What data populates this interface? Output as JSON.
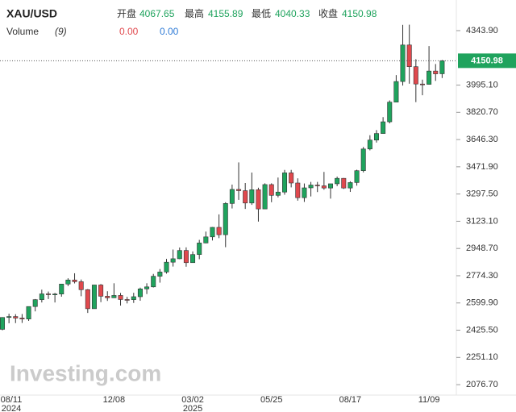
{
  "chart_data": {
    "type": "candlestick",
    "title": "XAU/USD",
    "ohlc_labels": [
      "开盘",
      "最高",
      "最低",
      "收盘"
    ],
    "volume_label": "Volume",
    "volume_period": "(9)",
    "volume_values": [
      {
        "value": 0,
        "label": "0.00"
      },
      {
        "value": 0,
        "label": "0.00"
      }
    ],
    "watermark": "Investing.com",
    "up_color": "#1fa35d",
    "down_color": "#e0484d",
    "categories": [
      "08/11",
      null,
      null,
      null,
      null,
      null,
      null,
      null,
      null,
      null,
      null,
      null,
      null,
      null,
      null,
      null,
      null,
      "12/08",
      null,
      null,
      null,
      null,
      null,
      null,
      null,
      null,
      null,
      null,
      null,
      "03/02",
      null,
      null,
      null,
      null,
      null,
      null,
      null,
      null,
      null,
      null,
      null,
      "05/25",
      null,
      null,
      null,
      null,
      null,
      null,
      null,
      null,
      null,
      null,
      null,
      "08/17",
      null,
      null,
      null,
      null,
      null,
      null,
      null,
      null,
      null,
      null,
      null,
      "11/09",
      null,
      null
    ],
    "category_years": [
      "2024",
      null,
      null,
      null,
      null,
      null,
      null,
      null,
      null,
      null,
      null,
      null,
      null,
      null,
      null,
      null,
      null,
      null,
      null,
      null,
      null,
      null,
      null,
      null,
      null,
      null,
      null,
      null,
      null,
      "2025",
      null,
      null,
      null,
      null,
      null,
      null,
      null,
      null,
      null,
      null,
      null,
      null,
      null,
      null,
      null,
      null,
      null,
      null,
      null,
      null,
      null,
      null,
      null,
      null,
      null,
      null,
      null,
      null,
      null,
      null,
      null,
      null,
      null,
      null,
      null,
      null,
      null,
      null
    ],
    "open": [
      2431,
      2507,
      2513,
      2503,
      2497,
      2577,
      2621,
      2658,
      2653,
      2657,
      2721,
      2747,
      2736,
      2685,
      2563,
      2715,
      2643,
      2633,
      2648,
      2622,
      2621,
      2640,
      2690,
      2703,
      2771,
      2798,
      2861,
      2883,
      2936,
      2858,
      2910,
      2984,
      3023,
      3084,
      3037,
      3237,
      3327,
      3319,
      3240,
      3325,
      3202,
      3358,
      3289,
      3310,
      3433,
      3368,
      3274,
      3337,
      3355,
      3350,
      3336,
      3363,
      3398,
      3336,
      3371,
      3447,
      3586,
      3643,
      3685,
      3760,
      3886,
      4018,
      4252,
      4113,
      4002,
      4000,
      4085,
      4067.65
    ],
    "high": [
      2509,
      2531,
      2528,
      2529,
      2578,
      2625,
      2685,
      2673,
      2664,
      2722,
      2758,
      2790,
      2750,
      2689,
      2716,
      2721,
      2675,
      2726,
      2664,
      2639,
      2665,
      2698,
      2726,
      2786,
      2817,
      2882,
      2942,
      2955,
      2956,
      2930,
      3004,
      3057,
      3086,
      3167,
      3245,
      3358,
      3500,
      3368,
      3435,
      3338,
      3366,
      3366,
      3403,
      3452,
      3452,
      3398,
      3365,
      3375,
      3375,
      3439,
      3363,
      3409,
      3400,
      3379,
      3453,
      3599,
      3674,
      3707,
      3790,
      3897,
      4059,
      4381,
      4382,
      4161,
      4030,
      4245,
      4130,
      4155.89
    ],
    "low": [
      2425,
      2470,
      2471,
      2472,
      2485,
      2546,
      2603,
      2625,
      2603,
      2640,
      2708,
      2725,
      2643,
      2536,
      2563,
      2605,
      2613,
      2632,
      2583,
      2597,
      2600,
      2614,
      2657,
      2699,
      2730,
      2788,
      2833,
      2880,
      2832,
      2857,
      2880,
      2982,
      3000,
      3015,
      2957,
      3205,
      3260,
      3202,
      3228,
      3121,
      3205,
      3245,
      3276,
      3293,
      3340,
      3255,
      3247,
      3282,
      3310,
      3325,
      3268,
      3348,
      3330,
      3311,
      3351,
      3436,
      3577,
      3627,
      3685,
      3750,
      3886,
      3992,
      4004,
      3886,
      3930,
      3998,
      4022,
      4040.33
    ],
    "close": [
      2507,
      2513,
      2503,
      2497,
      2577,
      2621,
      2658,
      2653,
      2657,
      2721,
      2747,
      2736,
      2685,
      2563,
      2715,
      2643,
      2633,
      2648,
      2622,
      2621,
      2640,
      2690,
      2703,
      2771,
      2798,
      2861,
      2883,
      2936,
      2858,
      2910,
      2984,
      3023,
      3084,
      3037,
      3237,
      3327,
      3319,
      3240,
      3325,
      3202,
      3358,
      3289,
      3310,
      3433,
      3368,
      3274,
      3337,
      3355,
      3350,
      3336,
      3363,
      3398,
      3336,
      3371,
      3447,
      3586,
      3643,
      3685,
      3760,
      3886,
      4018,
      4252,
      4113,
      4002,
      4000,
      4085,
      4067,
      4150.98
    ],
    "ylim": [
      2010,
      4540
    ],
    "yticks": [
      {
        "value": 4343.9,
        "label": "4343.90"
      },
      {
        "value": 3995.1,
        "label": "3995.10"
      },
      {
        "value": 3820.7,
        "label": "3820.70"
      },
      {
        "value": 3646.3,
        "label": "3646.30"
      },
      {
        "value": 3471.9,
        "label": "3471.90"
      },
      {
        "value": 3297.5,
        "label": "3297.50"
      },
      {
        "value": 3123.1,
        "label": "3123.10"
      },
      {
        "value": 2948.7,
        "label": "2948.70"
      },
      {
        "value": 2774.3,
        "label": "2774.30"
      },
      {
        "value": 2599.9,
        "label": "2599.90"
      },
      {
        "value": 2425.5,
        "label": "2425.50"
      },
      {
        "value": 2251.1,
        "label": "2251.10"
      },
      {
        "value": 2076.7,
        "label": "2076.70"
      }
    ],
    "grid": false
  }
}
